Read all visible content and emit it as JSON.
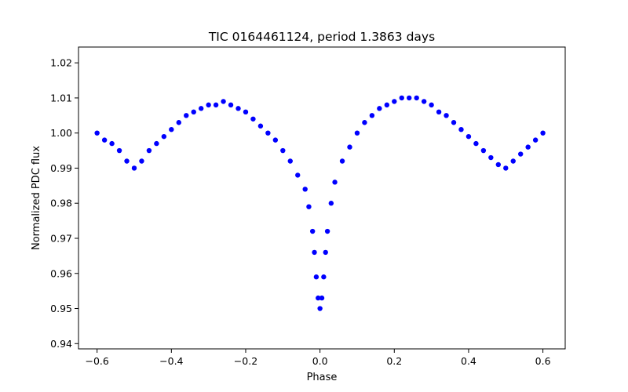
{
  "chart_data": {
    "type": "scatter",
    "title": "TIC 0164461124, period 1.3863 days",
    "xlabel": "Phase",
    "ylabel": "Normalized PDC flux",
    "xlim": [
      -0.65,
      0.66
    ],
    "ylim": [
      0.9385,
      1.0245
    ],
    "xticks": [
      "−0.6",
      "−0.4",
      "−0.2",
      "0.0",
      "0.2",
      "0.4",
      "0.6"
    ],
    "xtick_values": [
      -0.6,
      -0.4,
      -0.2,
      0.0,
      0.2,
      0.4,
      0.6
    ],
    "yticks": [
      "0.94",
      "0.95",
      "0.96",
      "0.97",
      "0.98",
      "0.99",
      "1.00",
      "1.01",
      "1.02"
    ],
    "ytick_values": [
      0.94,
      0.95,
      0.96,
      0.97,
      0.98,
      0.99,
      1.0,
      1.01,
      1.02
    ],
    "grid": false,
    "marker_color": "#0000ff",
    "series": [
      {
        "x": [
          -0.6,
          -0.58,
          -0.56,
          -0.54,
          -0.52,
          -0.5,
          -0.48,
          -0.46,
          -0.44,
          -0.42,
          -0.4,
          -0.38,
          -0.36,
          -0.34,
          -0.32,
          -0.3,
          -0.28,
          -0.26,
          -0.24,
          -0.22,
          -0.2,
          -0.18,
          -0.16,
          -0.14,
          -0.12,
          -0.1,
          -0.08,
          -0.06,
          -0.04,
          -0.03,
          -0.02,
          -0.015,
          -0.01,
          -0.005,
          0.0,
          0.005,
          0.01,
          0.015,
          0.02,
          0.03,
          0.04,
          0.06,
          0.08,
          0.1,
          0.12,
          0.14,
          0.16,
          0.18,
          0.2,
          0.22,
          0.24,
          0.26,
          0.28,
          0.3,
          0.32,
          0.34,
          0.36,
          0.38,
          0.4,
          0.42,
          0.44,
          0.46,
          0.48,
          0.5,
          0.52,
          0.54,
          0.56,
          0.58,
          0.6
        ],
        "y": [
          1.0,
          0.998,
          0.997,
          0.995,
          0.992,
          0.99,
          0.992,
          0.995,
          0.997,
          0.999,
          1.001,
          1.003,
          1.005,
          1.006,
          1.007,
          1.008,
          1.008,
          1.009,
          1.008,
          1.007,
          1.006,
          1.004,
          1.002,
          1.0,
          0.998,
          0.995,
          0.992,
          0.988,
          0.984,
          0.979,
          0.972,
          0.966,
          0.959,
          0.953,
          0.95,
          0.953,
          0.959,
          0.966,
          0.972,
          0.98,
          0.986,
          0.992,
          0.996,
          1.0,
          1.003,
          1.005,
          1.007,
          1.008,
          1.009,
          1.01,
          1.01,
          1.01,
          1.009,
          1.008,
          1.006,
          1.005,
          1.003,
          1.001,
          0.999,
          0.997,
          0.995,
          0.993,
          0.991,
          0.99,
          0.992,
          0.994,
          0.996,
          0.998,
          1.0
        ]
      }
    ]
  }
}
